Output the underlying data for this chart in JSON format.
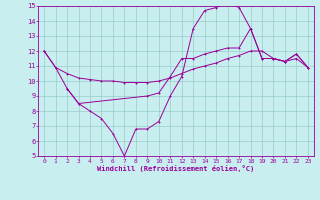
{
  "xlabel": "Windchill (Refroidissement éolien,°C)",
  "xlim": [
    -0.5,
    23.5
  ],
  "ylim": [
    5,
    15
  ],
  "yticks": [
    5,
    6,
    7,
    8,
    9,
    10,
    11,
    12,
    13,
    14,
    15
  ],
  "xticks": [
    0,
    1,
    2,
    3,
    4,
    5,
    6,
    7,
    8,
    9,
    10,
    11,
    12,
    13,
    14,
    15,
    16,
    17,
    18,
    19,
    20,
    21,
    22,
    23
  ],
  "bg_color": "#c8eef0",
  "line_color": "#990099",
  "grid_color": "#99cccc",
  "line1_x": [
    0,
    1,
    2,
    3,
    4,
    5,
    6,
    7,
    8,
    9,
    10,
    11,
    12,
    13,
    14,
    15,
    16,
    17,
    18,
    19,
    20,
    21,
    22,
    23
  ],
  "line1_y": [
    12.0,
    10.9,
    10.5,
    10.2,
    10.1,
    10.0,
    10.0,
    9.9,
    9.9,
    9.9,
    10.0,
    10.2,
    10.5,
    10.8,
    11.0,
    11.2,
    11.5,
    11.7,
    12.0,
    12.0,
    11.5,
    11.3,
    11.5,
    10.9
  ],
  "line2_x": [
    0,
    1,
    2,
    3,
    4,
    5,
    6,
    7,
    8,
    9,
    10,
    11,
    12,
    13,
    14,
    15,
    16,
    17,
    18,
    19,
    20,
    21,
    22,
    23
  ],
  "line2_y": [
    12.0,
    10.9,
    9.5,
    8.5,
    8.0,
    7.5,
    6.5,
    5.0,
    6.8,
    6.8,
    7.3,
    9.0,
    10.3,
    13.5,
    14.7,
    14.9,
    15.2,
    14.9,
    13.5,
    11.5,
    11.5,
    11.3,
    11.8,
    10.9
  ],
  "line3_x": [
    2,
    3,
    9,
    10,
    11,
    12,
    13,
    14,
    15,
    16,
    17,
    18,
    19,
    20,
    21,
    22,
    23
  ],
  "line3_y": [
    9.5,
    8.5,
    9.0,
    9.2,
    10.3,
    11.5,
    11.5,
    11.8,
    12.0,
    12.2,
    12.2,
    13.5,
    11.5,
    11.5,
    11.3,
    11.8,
    10.9
  ]
}
